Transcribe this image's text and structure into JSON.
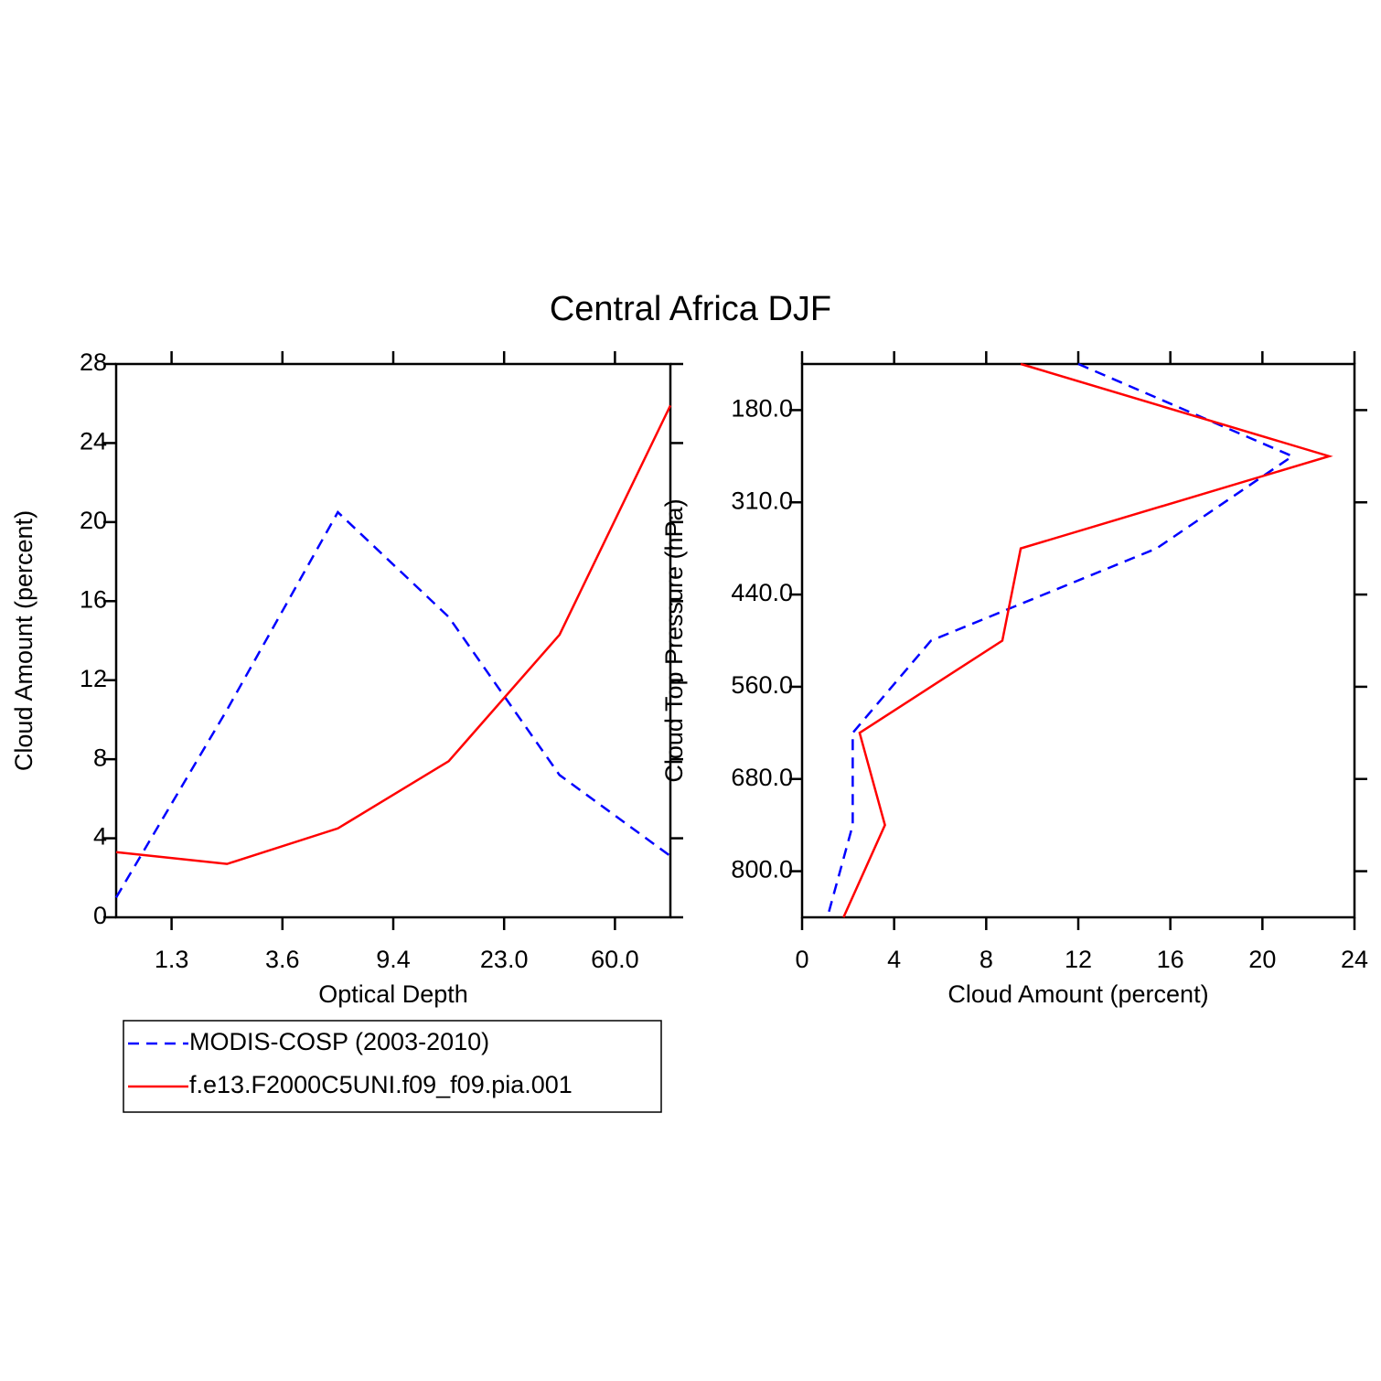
{
  "title": "Central Africa DJF",
  "chart_data": [
    {
      "type": "line",
      "orientation": "vertical",
      "xlabel": "Optical Depth",
      "ylabel": "Cloud Amount (percent)",
      "x": [
        0,
        1,
        2,
        3,
        4,
        5
      ],
      "xlim": [
        0,
        5
      ],
      "xticks": [
        {
          "value": 0.5,
          "label": "1.3"
        },
        {
          "value": 1.5,
          "label": "3.6"
        },
        {
          "value": 2.5,
          "label": "9.4"
        },
        {
          "value": 3.5,
          "label": "23.0"
        },
        {
          "value": 4.5,
          "label": "60.0"
        }
      ],
      "ylim": [
        0,
        28
      ],
      "yticks": [
        0,
        4,
        8,
        12,
        16,
        20,
        24,
        28
      ],
      "series": [
        {
          "name": "MODIS-COSP (2003-2010)",
          "color": "#0000ff",
          "line_style": "dashed",
          "values": [
            1.0,
            10.5,
            20.5,
            15.2,
            7.2,
            3.1
          ]
        },
        {
          "name": "f.e13.F2000C5UNI.f09_f09.pia.001",
          "color": "#ff0000",
          "line_style": "solid",
          "values": [
            3.3,
            2.7,
            4.5,
            7.9,
            14.3,
            25.9
          ]
        }
      ]
    },
    {
      "type": "line",
      "orientation": "horizontal",
      "xlabel": "Cloud Amount (percent)",
      "ylabel": "Cloud Top Pressure (hPa)",
      "y": [
        0,
        1,
        2,
        3,
        4,
        5,
        6
      ],
      "ylim": [
        6,
        0
      ],
      "yticks": [
        {
          "value": 0.5,
          "label": "180.0"
        },
        {
          "value": 1.5,
          "label": "310.0"
        },
        {
          "value": 2.5,
          "label": "440.0"
        },
        {
          "value": 3.5,
          "label": "560.0"
        },
        {
          "value": 4.5,
          "label": "680.0"
        },
        {
          "value": 5.5,
          "label": "800.0"
        }
      ],
      "xlim": [
        0,
        24
      ],
      "xticks": [
        0,
        4,
        8,
        12,
        16,
        20,
        24
      ],
      "series": [
        {
          "name": "MODIS-COSP (2003-2010)",
          "color": "#0000ff",
          "line_style": "dashed",
          "values": [
            12.0,
            21.3,
            15.4,
            5.6,
            2.2,
            2.2,
            1.1
          ]
        },
        {
          "name": "f.e13.F2000C5UNI.f09_f09.pia.001",
          "color": "#ff0000",
          "line_style": "solid",
          "values": [
            9.5,
            22.9,
            9.5,
            8.7,
            2.5,
            3.6,
            1.8
          ]
        }
      ]
    }
  ]
}
